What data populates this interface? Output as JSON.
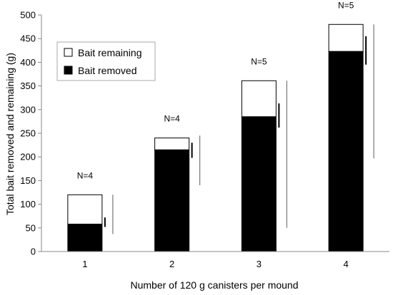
{
  "chart_data": {
    "type": "bar",
    "stacked": true,
    "categories": [
      "1",
      "2",
      "3",
      "4"
    ],
    "series": [
      {
        "name": "Bait removed",
        "values": [
          58,
          215,
          285,
          423
        ],
        "color": "#000000"
      },
      {
        "name": "Bait remaining",
        "values": [
          62,
          25,
          76,
          57
        ],
        "color": "#ffffff"
      }
    ],
    "totals": [
      120,
      240,
      361,
      480
    ],
    "sample_labels": [
      "N=4",
      "N=4",
      "N=5",
      "N=5"
    ],
    "error_bars_removed": [
      [
        52,
        72
      ],
      [
        198,
        230
      ],
      [
        262,
        313
      ],
      [
        395,
        455
      ]
    ],
    "error_bars_remaining": [
      [
        37,
        120
      ],
      [
        140,
        245
      ],
      [
        50,
        361
      ],
      [
        197,
        480
      ]
    ],
    "xlabel": "Number of 120 g canisters per mound",
    "ylabel": "Total bait removed and remaining (g)",
    "ylim": [
      0,
      500
    ],
    "yticks": [
      0,
      50,
      100,
      150,
      200,
      250,
      300,
      350,
      400,
      450,
      500
    ],
    "grid": false,
    "legend": "top-left",
    "legend_order": [
      "Bait remaining",
      "Bait removed"
    ]
  }
}
